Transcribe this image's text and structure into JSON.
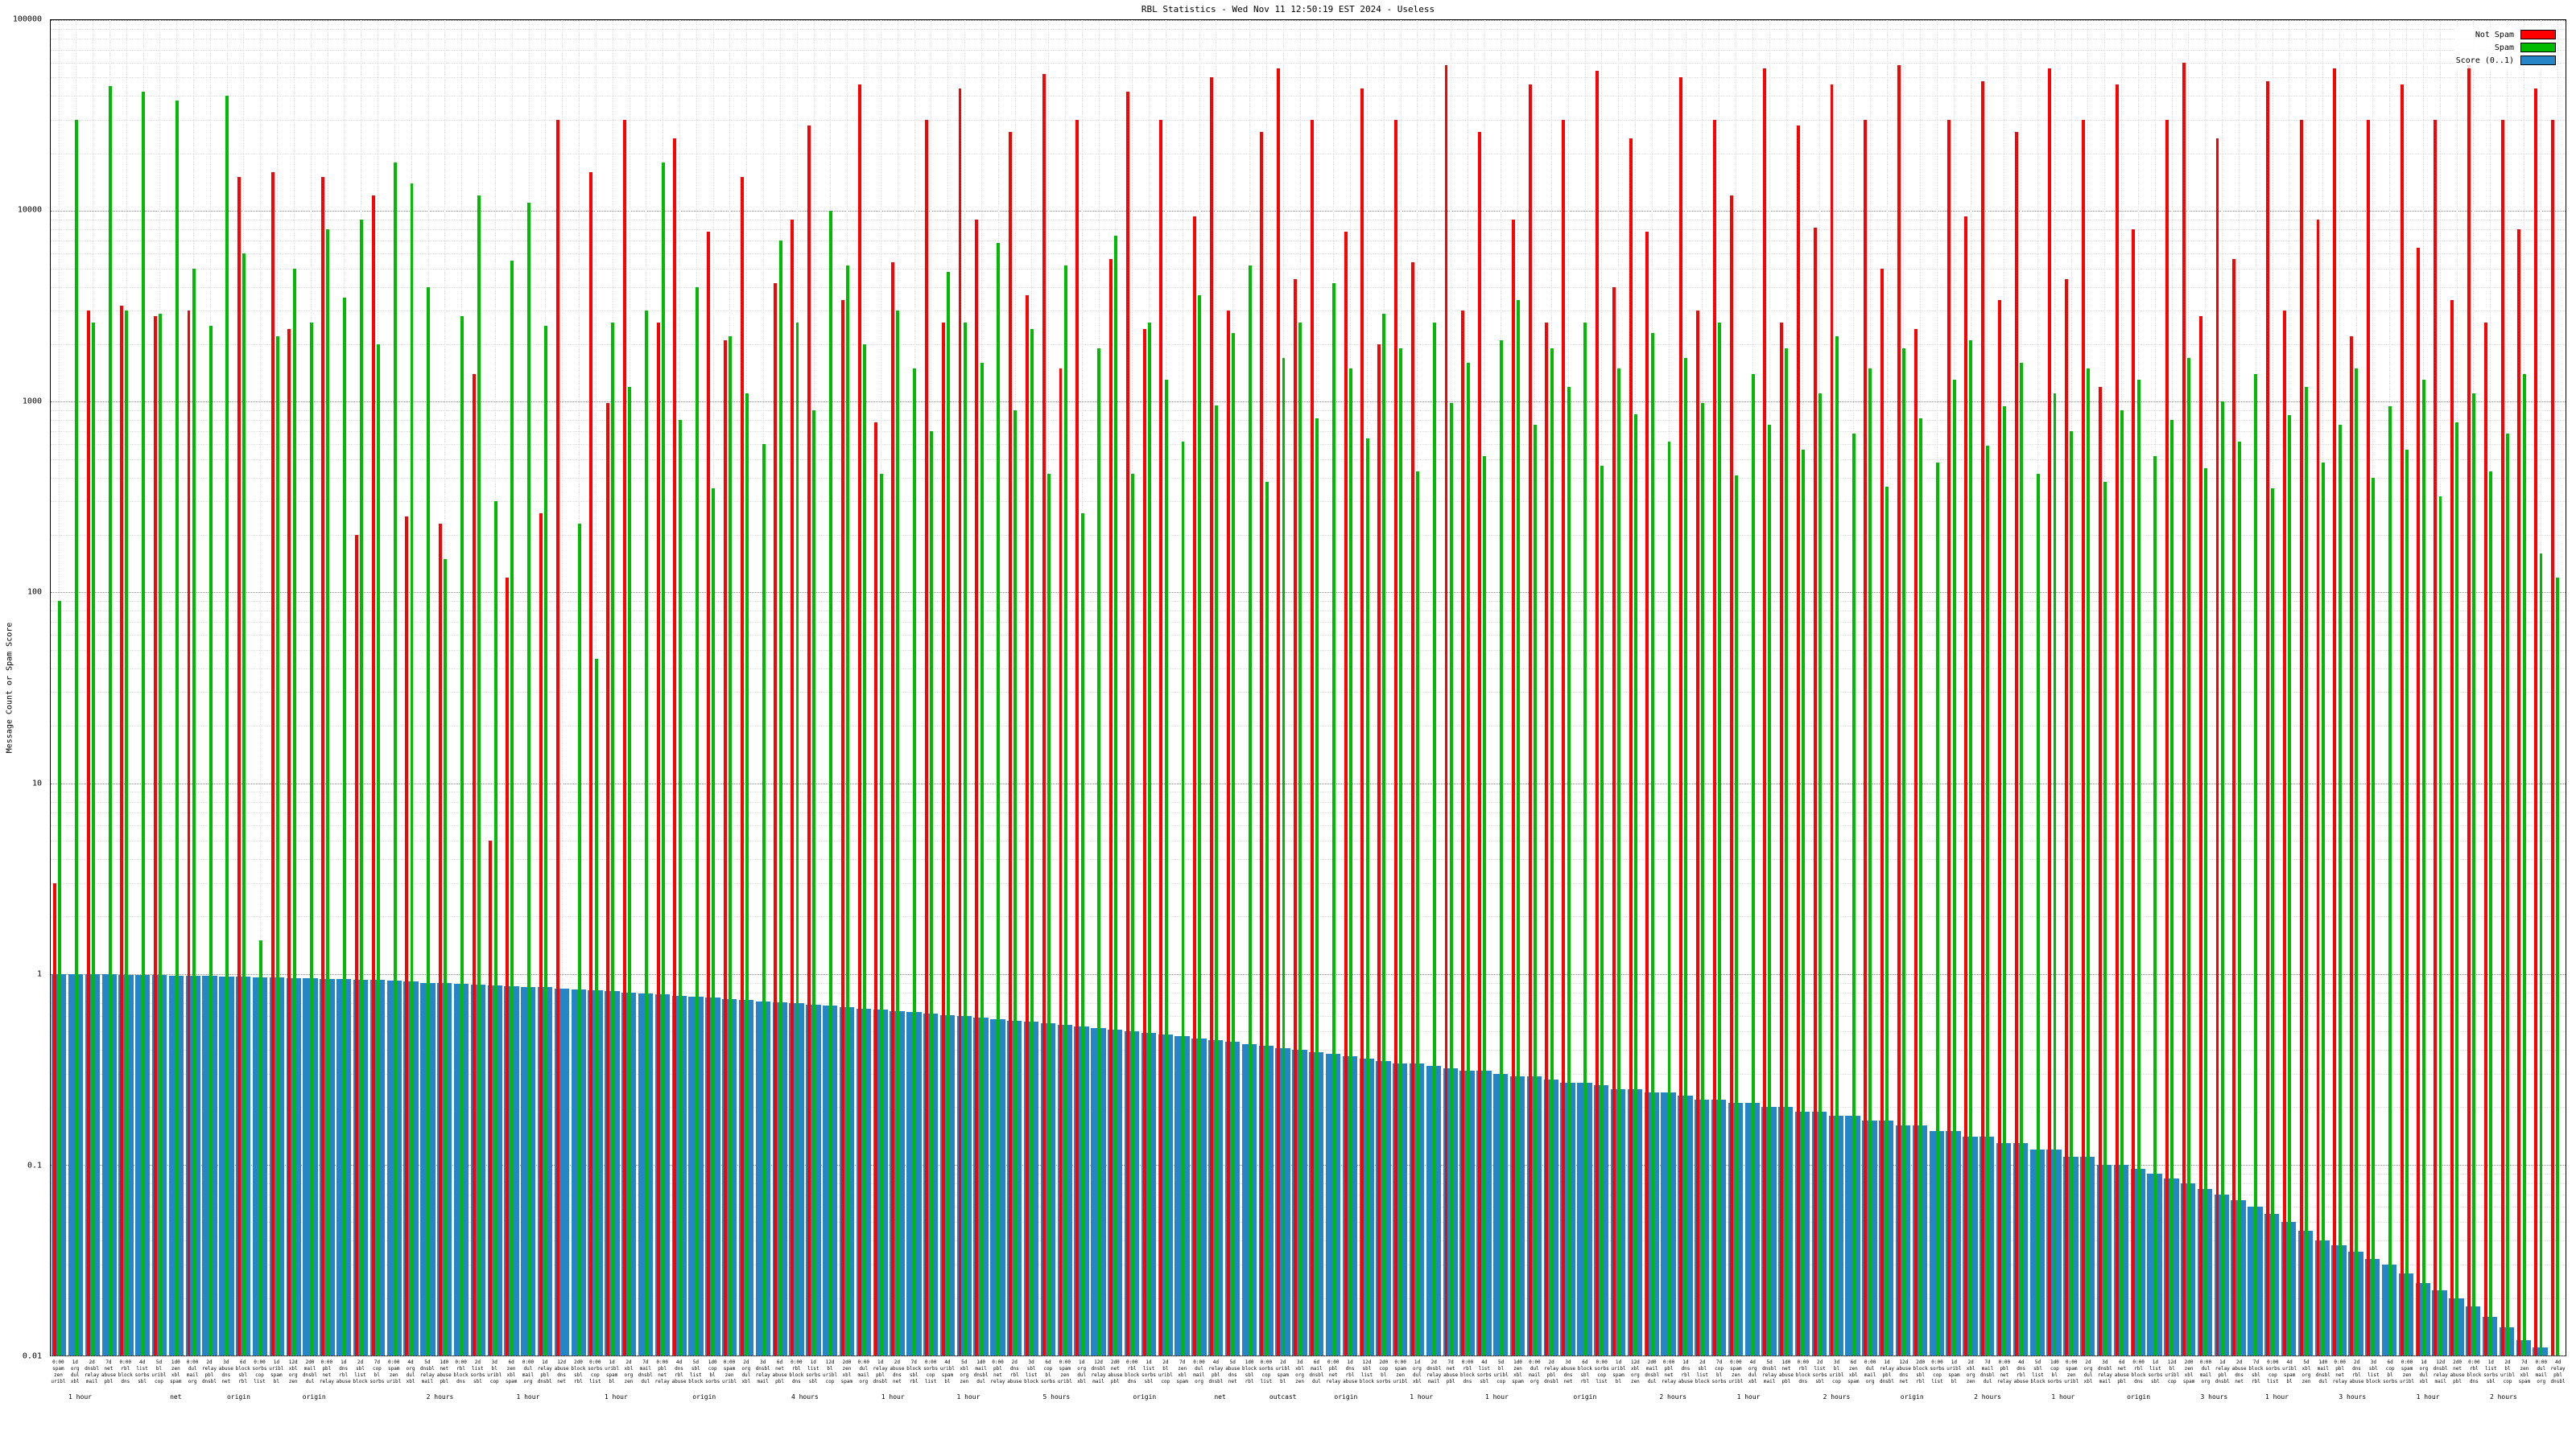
{
  "title": "RBL Statistics - Wed Nov 11 12:50:19 EST 2024 - Useless",
  "y_axis": {
    "label": "Message Count or Spam Score",
    "ticks": [
      "100000",
      "10000",
      "1000",
      "100",
      "10",
      "1",
      "0.1",
      "0.01"
    ]
  },
  "legend": [
    {
      "label": "Not Spam",
      "color": "#ff0000"
    },
    {
      "label": "Spam",
      "color": "#00bb00"
    },
    {
      "label": "Score (0..1)",
      "color": "#2585c7"
    }
  ],
  "chart_data": {
    "type": "bar",
    "title": "RBL Statistics - Wed Nov 11 12:50:19 EST 2024 - Useless",
    "xlabel": "",
    "ylabel": "Message Count or Spam Score",
    "y_scale": "log",
    "ylim": [
      0.01,
      100000
    ],
    "grid": true,
    "legend_position": "top-right",
    "series": [
      {
        "name": "Not Spam",
        "color": "#ff0000",
        "values": [
          3,
          0,
          3000,
          0,
          3200,
          0,
          2800,
          0,
          3000,
          0,
          0,
          15000,
          0,
          16000,
          2400,
          0,
          15000,
          0,
          200,
          12000,
          0,
          250,
          0,
          230,
          0,
          1400,
          5,
          120,
          0,
          260,
          30000,
          0,
          16000,
          980,
          30000,
          0,
          2600,
          24000,
          0,
          7800,
          2100,
          15000,
          0,
          4200,
          9000,
          28000,
          0,
          3400,
          46000,
          780,
          5400,
          0,
          30000,
          2600,
          44000,
          9000,
          0,
          26000,
          3600,
          52000,
          1500,
          30000,
          0,
          5600,
          42000,
          2400,
          30000,
          0,
          9400,
          50000,
          3000,
          0,
          26000,
          56000,
          4400,
          30000,
          0,
          7800,
          44000,
          2000,
          30000,
          5400,
          0,
          58000,
          3000,
          26000,
          0,
          9000,
          46000,
          2600,
          30000,
          0,
          54000,
          4000,
          24000,
          7800,
          0,
          50000,
          3000,
          30000,
          12000,
          0,
          56000,
          2600,
          28000,
          8200,
          46000,
          0,
          30000,
          5000,
          58000,
          2400,
          0,
          30000,
          9400,
          48000,
          3400,
          26000,
          0,
          56000,
          4400,
          30000,
          1200,
          46000,
          8000,
          0,
          30000,
          60000,
          2800,
          24000,
          5600,
          0,
          48000,
          3000,
          30000,
          9000,
          56000,
          2200,
          30000,
          0,
          46000,
          6400,
          30000,
          3400,
          58000,
          2600,
          30000,
          8000,
          44000,
          30000
        ]
      },
      {
        "name": "Spam",
        "color": "#00bb00",
        "values": [
          90,
          30000,
          2600,
          45000,
          3000,
          42000,
          2900,
          38000,
          5000,
          2500,
          40000,
          6000,
          1.5,
          2200,
          5000,
          2600,
          8000,
          3500,
          9000,
          2000,
          18000,
          14000,
          4000,
          150,
          2800,
          12000,
          300,
          5500,
          11000,
          2500,
          0,
          230,
          45,
          2600,
          1200,
          3000,
          18000,
          800,
          4000,
          350,
          2200,
          1100,
          600,
          7000,
          2600,
          900,
          10000,
          5200,
          2000,
          420,
          3000,
          1500,
          700,
          4800,
          2600,
          1600,
          6800,
          900,
          2400,
          420,
          5200,
          260,
          1900,
          7400,
          420,
          2600,
          1300,
          620,
          3600,
          960,
          2300,
          5200,
          380,
          1700,
          2600,
          820,
          4200,
          1500,
          640,
          2900,
          1900,
          430,
          2600,
          980,
          1600,
          520,
          2100,
          3400,
          760,
          1900,
          1200,
          2600,
          460,
          1500,
          860,
          2300,
          620,
          1700,
          980,
          2600,
          410,
          1400,
          760,
          1900,
          560,
          1100,
          2200,
          680,
          1500,
          360,
          1900,
          820,
          480,
          1300,
          2100,
          590,
          950,
          1600,
          420,
          1100,
          700,
          1500,
          380,
          900,
          1300,
          520,
          800,
          1700,
          450,
          1000,
          620,
          1400,
          350,
          850,
          1200,
          480,
          760,
          1500,
          400,
          950,
          560,
          1300,
          320,
          780,
          1100,
          430,
          680,
          1400,
          160,
          120
        ]
      },
      {
        "name": "Score (0..1)",
        "color": "#2585c7",
        "values": [
          1,
          1,
          1,
          1,
          0.99,
          0.99,
          0.99,
          0.98,
          0.98,
          0.98,
          0.97,
          0.97,
          0.96,
          0.96,
          0.95,
          0.95,
          0.94,
          0.94,
          0.93,
          0.93,
          0.92,
          0.91,
          0.9,
          0.9,
          0.89,
          0.88,
          0.87,
          0.86,
          0.85,
          0.85,
          0.84,
          0.83,
          0.82,
          0.81,
          0.8,
          0.79,
          0.78,
          0.77,
          0.76,
          0.75,
          0.74,
          0.73,
          0.72,
          0.71,
          0.7,
          0.69,
          0.68,
          0.67,
          0.66,
          0.65,
          0.64,
          0.63,
          0.62,
          0.61,
          0.6,
          0.59,
          0.58,
          0.57,
          0.56,
          0.55,
          0.54,
          0.53,
          0.52,
          0.51,
          0.5,
          0.49,
          0.48,
          0.47,
          0.46,
          0.45,
          0.44,
          0.43,
          0.42,
          0.41,
          0.4,
          0.39,
          0.38,
          0.37,
          0.36,
          0.35,
          0.34,
          0.34,
          0.33,
          0.32,
          0.31,
          0.31,
          0.3,
          0.29,
          0.29,
          0.28,
          0.27,
          0.27,
          0.26,
          0.25,
          0.25,
          0.24,
          0.24,
          0.23,
          0.22,
          0.22,
          0.21,
          0.21,
          0.2,
          0.2,
          0.19,
          0.19,
          0.18,
          0.18,
          0.17,
          0.17,
          0.16,
          0.16,
          0.15,
          0.15,
          0.14,
          0.14,
          0.13,
          0.13,
          0.12,
          0.12,
          0.11,
          0.11,
          0.1,
          0.1,
          0.095,
          0.09,
          0.085,
          0.08,
          0.075,
          0.07,
          0.065,
          0.06,
          0.055,
          0.05,
          0.045,
          0.04,
          0.038,
          0.035,
          0.032,
          0.03,
          0.027,
          0.024,
          0.022,
          0.02,
          0.018,
          0.016,
          0.014,
          0.012,
          0.011,
          0.01
        ]
      }
    ],
    "x_tick_time_cycle": [
      "0:00",
      "1d",
      "2d",
      "7d",
      "0:00",
      "4d",
      "5d",
      "1d0",
      "0:00",
      "2d",
      "3d",
      "6d",
      "0:00",
      "1d",
      "12d",
      "2d0"
    ],
    "x_name_fragment_cycle": [
      "spam",
      "org",
      "dnsbl",
      "net",
      "rbl",
      "list",
      "bl",
      "zen",
      "dul",
      "relay",
      "abuse",
      "block",
      "sorbs",
      "uribl",
      "xbl",
      "mail",
      "pbl",
      "dns",
      "sbl",
      "cop"
    ],
    "x_hour_labels": [
      {
        "pos": 0.012,
        "text": "1 hour"
      },
      {
        "pos": 0.05,
        "text": "net"
      },
      {
        "pos": 0.075,
        "text": "origin"
      },
      {
        "pos": 0.105,
        "text": "origin"
      },
      {
        "pos": 0.155,
        "text": "2 hours"
      },
      {
        "pos": 0.19,
        "text": "1 hour"
      },
      {
        "pos": 0.225,
        "text": "1 hour"
      },
      {
        "pos": 0.26,
        "text": "origin"
      },
      {
        "pos": 0.3,
        "text": "4 hours"
      },
      {
        "pos": 0.335,
        "text": "1 hour"
      },
      {
        "pos": 0.365,
        "text": "1 hour"
      },
      {
        "pos": 0.4,
        "text": "5 hours"
      },
      {
        "pos": 0.435,
        "text": "origin"
      },
      {
        "pos": 0.465,
        "text": "net"
      },
      {
        "pos": 0.49,
        "text": "outcast"
      },
      {
        "pos": 0.515,
        "text": "origin"
      },
      {
        "pos": 0.545,
        "text": "1 hour"
      },
      {
        "pos": 0.575,
        "text": "1 hour"
      },
      {
        "pos": 0.61,
        "text": "origin"
      },
      {
        "pos": 0.645,
        "text": "2 hours"
      },
      {
        "pos": 0.675,
        "text": "1 hour"
      },
      {
        "pos": 0.71,
        "text": "2 hours"
      },
      {
        "pos": 0.74,
        "text": "origin"
      },
      {
        "pos": 0.77,
        "text": "2 hours"
      },
      {
        "pos": 0.8,
        "text": "1 hour"
      },
      {
        "pos": 0.83,
        "text": "origin"
      },
      {
        "pos": 0.86,
        "text": "3 hours"
      },
      {
        "pos": 0.885,
        "text": "1 hour"
      },
      {
        "pos": 0.915,
        "text": "3 hours"
      },
      {
        "pos": 0.945,
        "text": "1 hour"
      },
      {
        "pos": 0.975,
        "text": "2 hours"
      }
    ]
  }
}
